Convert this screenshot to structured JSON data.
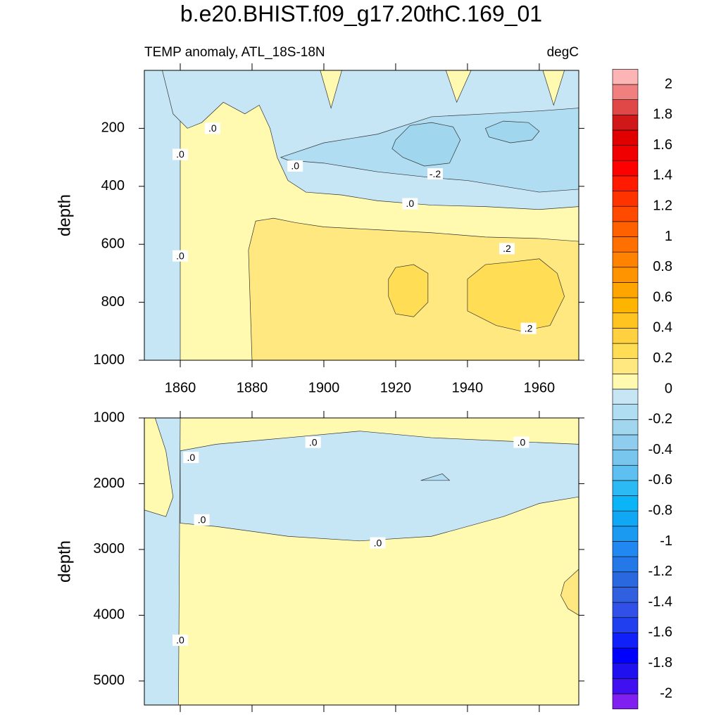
{
  "chart_data": [
    {
      "type": "contour",
      "title": "b.e20.BHIST.f09_g17.20thC.169_01",
      "subtitle_left": "TEMP anomaly, ATL_18S-18N",
      "subtitle_right": "degC",
      "ylabel": "depth",
      "xlim": [
        1850,
        1971
      ],
      "ylim": [
        0,
        1000
      ],
      "y_reversed": true,
      "xticks": [
        1860,
        1880,
        1900,
        1920,
        1940,
        1960
      ],
      "yticks": [
        200,
        400,
        600,
        800,
        1000
      ],
      "show_xtick_labels": true,
      "background_range": [
        0,
        0.1
      ],
      "regions": [
        {
          "range": [
            -0.1,
            0
          ],
          "x": [
            1850,
            1860,
            1860,
            1850
          ],
          "y": [
            0,
            0,
            1000,
            1000
          ]
        },
        {
          "range": [
            -0.1,
            0
          ],
          "x": [
            1855,
            1971,
            1971,
            1960,
            1945,
            1930,
            1915,
            1905,
            1895,
            1890,
            1887,
            1885,
            1882,
            1878,
            1872,
            1866,
            1862,
            1858
          ],
          "y": [
            0,
            0,
            470,
            480,
            470,
            465,
            450,
            430,
            420,
            380,
            300,
            200,
            120,
            150,
            110,
            180,
            200,
            150
          ]
        },
        {
          "range": [
            -0.2,
            -0.1
          ],
          "x": [
            1888,
            1900,
            1915,
            1930,
            1945,
            1960,
            1971,
            1971,
            1960,
            1950,
            1940,
            1930,
            1915,
            1900,
            1890
          ],
          "y": [
            300,
            250,
            220,
            160,
            150,
            140,
            130,
            410,
            420,
            400,
            380,
            370,
            350,
            320,
            310
          ]
        },
        {
          "range": [
            -0.3,
            -0.2
          ],
          "x": [
            1920,
            1924,
            1930,
            1936,
            1938,
            1935,
            1928,
            1922,
            1919
          ],
          "y": [
            240,
            190,
            180,
            195,
            240,
            320,
            330,
            300,
            270
          ]
        },
        {
          "range": [
            -0.3,
            -0.2
          ],
          "x": [
            1945,
            1950,
            1957,
            1960,
            1958,
            1952,
            1946
          ],
          "y": [
            200,
            175,
            180,
            210,
            240,
            250,
            230
          ]
        },
        {
          "range": [
            0,
            0.1
          ],
          "x": [
            1899,
            1902,
            1905
          ],
          "y": [
            0,
            130,
            0
          ]
        },
        {
          "range": [
            0,
            0.1
          ],
          "x": [
            1934,
            1937,
            1941
          ],
          "y": [
            0,
            110,
            0
          ]
        },
        {
          "range": [
            0,
            0.1
          ],
          "x": [
            1961,
            1964,
            1967
          ],
          "y": [
            0,
            120,
            0
          ]
        },
        {
          "range": [
            0.1,
            0.2
          ],
          "x": [
            1880,
            1879,
            1881,
            1886,
            1892,
            1900,
            1915,
            1930,
            1945,
            1960,
            1971,
            1971
          ],
          "y": [
            1000,
            620,
            520,
            510,
            525,
            540,
            550,
            560,
            575,
            580,
            590,
            1000
          ]
        },
        {
          "range": [
            0.2,
            0.3
          ],
          "x": [
            1918,
            1920,
            1925,
            1929,
            1929,
            1925,
            1920,
            1918
          ],
          "y": [
            720,
            680,
            670,
            700,
            800,
            850,
            840,
            780
          ]
        },
        {
          "range": [
            0.2,
            0.3
          ],
          "x": [
            1940,
            1945,
            1953,
            1960,
            1965,
            1967,
            1963,
            1955,
            1948,
            1940
          ],
          "y": [
            720,
            670,
            660,
            650,
            700,
            780,
            880,
            900,
            880,
            830
          ]
        }
      ],
      "contour_labels": [
        {
          "text": ".0",
          "x": 1860,
          "y": 290
        },
        {
          "text": ".0",
          "x": 1869,
          "y": 200
        },
        {
          "text": ".0",
          "x": 1892,
          "y": 330
        },
        {
          "text": "-.2",
          "x": 1931,
          "y": 357
        },
        {
          "text": ".0",
          "x": 1924,
          "y": 460
        },
        {
          "text": ".2",
          "x": 1951,
          "y": 615
        },
        {
          "text": ".2",
          "x": 1957,
          "y": 890
        },
        {
          "text": ".0",
          "x": 1860,
          "y": 640
        }
      ]
    },
    {
      "type": "contour",
      "ylabel": "depth",
      "xlim": [
        1850,
        1971
      ],
      "ylim": [
        1000,
        5365
      ],
      "y_reversed": true,
      "xticks": [
        1860,
        1880,
        1900,
        1920,
        1940,
        1960
      ],
      "yticks": [
        1000,
        2000,
        3000,
        4000,
        5000
      ],
      "show_xtick_labels": false,
      "background_range": [
        0,
        0.1
      ],
      "regions": [
        {
          "range": [
            -0.1,
            0
          ],
          "x": [
            1850,
            1860,
            1859.5,
            1850
          ],
          "y": [
            1000,
            1000,
            5365,
            5365
          ]
        },
        {
          "range": [
            0,
            0.1
          ],
          "x": [
            1850,
            1853,
            1856,
            1858,
            1856,
            1850
          ],
          "y": [
            1000,
            1000,
            1500,
            2200,
            2500,
            2400
          ]
        },
        {
          "range": [
            -0.1,
            0
          ],
          "x": [
            1860,
            1870,
            1890,
            1910,
            1930,
            1950,
            1971,
            1971,
            1960,
            1950,
            1930,
            1910,
            1890,
            1870,
            1860
          ],
          "y": [
            1500,
            1400,
            1300,
            1200,
            1300,
            1350,
            1400,
            2200,
            2300,
            2500,
            2800,
            2870,
            2800,
            2650,
            2600
          ]
        },
        {
          "range": [
            -0.2,
            -0.1
          ],
          "x": [
            1927,
            1933,
            1935
          ],
          "y": [
            1950,
            1850,
            1950
          ]
        },
        {
          "range": [
            0.1,
            0.2
          ],
          "x": [
            1971,
            1967,
            1966,
            1968,
            1971
          ],
          "y": [
            3300,
            3500,
            3700,
            3900,
            4000
          ]
        }
      ],
      "contour_labels": [
        {
          "text": ".0",
          "x": 1863,
          "y": 1600
        },
        {
          "text": ".0",
          "x": 1897,
          "y": 1370
        },
        {
          "text": ".0",
          "x": 1955,
          "y": 1370
        },
        {
          "text": ".0",
          "x": 1866,
          "y": 2550
        },
        {
          "text": ".0",
          "x": 1915,
          "y": 2900
        },
        {
          "text": ".0",
          "x": 1860,
          "y": 4380
        }
      ]
    }
  ],
  "colorbar": {
    "levels": [
      -2,
      -1.9,
      -1.8,
      -1.7,
      -1.6,
      -1.5,
      -1.4,
      -1.3,
      -1.2,
      -1.1,
      -1,
      -0.9,
      -0.8,
      -0.7,
      -0.6,
      -0.5,
      -0.4,
      -0.3,
      -0.2,
      -0.1,
      0,
      0.1,
      0.2,
      0.3,
      0.4,
      0.5,
      0.6,
      0.7,
      0.8,
      0.9,
      1,
      1.1,
      1.2,
      1.3,
      1.4,
      1.5,
      1.6,
      1.7,
      1.8,
      1.9,
      2
    ],
    "colors": [
      "#8020f0",
      "#4010f0",
      "#2010f0",
      "#0000ff",
      "#1020f8",
      "#2040f0",
      "#3050e8",
      "#3060e0",
      "#2a68e0",
      "#2478e8",
      "#2088f0",
      "#1a9af0",
      "#10a8f5",
      "#0ab4f7",
      "#2cbaf5",
      "#5ec0f0",
      "#78c6ee",
      "#8ecdee",
      "#a0d6ee",
      "#b0ddf2",
      "#c6e6f5",
      "#fffab0",
      "#ffe880",
      "#ffdd55",
      "#ffd040",
      "#ffc420",
      "#ffb400",
      "#ffa500",
      "#ff9400",
      "#ff8200",
      "#ff7000",
      "#ff6000",
      "#ff4a00",
      "#ff3300",
      "#ff1a00",
      "#ff0000",
      "#f00000",
      "#e00000",
      "#d01818",
      "#e04848",
      "#f08080",
      "#fdb4b4"
    ],
    "ticks": [
      -2,
      -1.8,
      -1.6,
      -1.4,
      -1.2,
      -1,
      -0.8,
      -0.6,
      -0.4,
      -0.2,
      0,
      0.2,
      0.4,
      0.6,
      0.8,
      1,
      1.2,
      1.4,
      1.6,
      1.8,
      2
    ]
  }
}
